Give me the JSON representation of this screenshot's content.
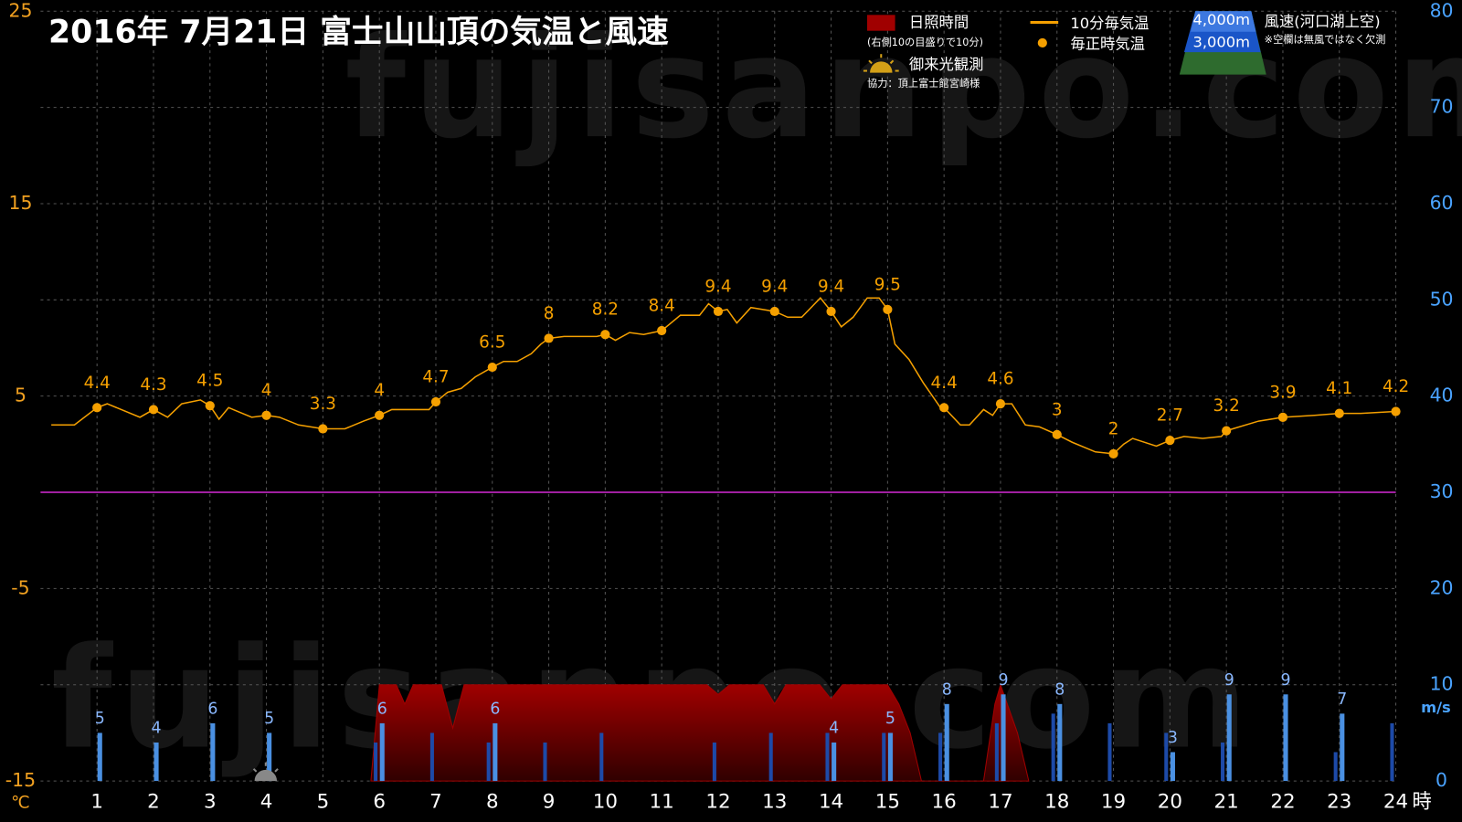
{
  "chart_data": {
    "type": "line",
    "title": "2016年  7月21日   富士山山頂の気温と風速",
    "watermark": "fujisanpo.com",
    "xlim": [
      0,
      24
    ],
    "xticks": [
      1,
      2,
      3,
      4,
      5,
      6,
      7,
      8,
      9,
      10,
      11,
      12,
      13,
      14,
      15,
      16,
      17,
      18,
      19,
      20,
      21,
      22,
      23,
      24
    ],
    "x_unit": "時",
    "ylim": [
      -15,
      25
    ],
    "yticks": [
      -15,
      -5,
      5,
      15,
      25
    ],
    "y_unit": "℃",
    "y2lim": [
      0,
      80
    ],
    "y2ticks": [
      0,
      10,
      20,
      30,
      40,
      50,
      60,
      70,
      80
    ],
    "y2_unit": "m/s",
    "grid": true,
    "sunshine_note": "(右側10の目盛りで10分)",
    "sunrise_label": "御来光観測",
    "credit": "協力：頂上富士館宮崎様",
    "wind_label": "風速(河口湖上空)",
    "wind_note": "※空欄は無風ではなく欠測",
    "series": [
      {
        "name": "10分毎気温",
        "type": "line",
        "color": "#f5a000",
        "x": [
          0.19,
          0.6,
          1,
          1.18,
          1.76,
          2,
          2.25,
          2.5,
          2.83,
          3,
          3.16,
          3.33,
          3.74,
          4,
          4.23,
          4.57,
          5,
          5.39,
          5.72,
          6,
          6.22,
          6.88,
          7,
          7.21,
          7.45,
          7.7,
          8,
          8.2,
          8.44,
          8.69,
          8.86,
          9,
          9.27,
          9.85,
          10,
          10.18,
          10.43,
          10.68,
          11,
          11.33,
          11.67,
          11.83,
          12,
          12.16,
          12.33,
          12.58,
          13,
          13.23,
          13.48,
          13.81,
          14,
          14.18,
          14.39,
          14.64,
          14.85,
          15,
          15.13,
          15.38,
          15.63,
          15.96,
          16,
          16.29,
          16.45,
          16.7,
          16.86,
          17,
          17.2,
          17.44,
          17.69,
          18,
          18.27,
          18.68,
          19,
          19.18,
          19.34,
          19.76,
          20,
          20.25,
          20.58,
          20.91,
          21,
          21.57,
          22,
          22.56,
          23,
          23.38,
          24
        ],
        "values": [
          3.5,
          3.5,
          4.4,
          4.6,
          3.9,
          4.3,
          3.9,
          4.6,
          4.8,
          4.5,
          3.8,
          4.4,
          3.9,
          4,
          3.9,
          3.5,
          3.3,
          3.3,
          3.7,
          4,
          4.3,
          4.3,
          4.7,
          5.2,
          5.4,
          6,
          6.5,
          6.8,
          6.8,
          7.2,
          7.7,
          8,
          8.1,
          8.1,
          8.2,
          7.9,
          8.3,
          8.2,
          8.4,
          9.2,
          9.2,
          9.8,
          9.4,
          9.5,
          8.8,
          9.6,
          9.4,
          9.1,
          9.1,
          10.1,
          9.4,
          8.6,
          9.1,
          10.1,
          10.1,
          9.5,
          7.7,
          6.9,
          5.7,
          4.3,
          4.4,
          3.5,
          3.5,
          4.3,
          4,
          4.6,
          4.6,
          3.5,
          3.4,
          3,
          2.6,
          2.1,
          2,
          2.5,
          2.8,
          2.4,
          2.7,
          2.9,
          2.8,
          2.9,
          3.2,
          3.7,
          3.9,
          4,
          4.1,
          4.1,
          4.2
        ]
      },
      {
        "name": "毎正時気温",
        "type": "scatter",
        "color": "#f5a000",
        "x": [
          1,
          2,
          3,
          4,
          5,
          6,
          7,
          8,
          9,
          10,
          11,
          12,
          13,
          14,
          15,
          16,
          17,
          18,
          19,
          20,
          21,
          22,
          23,
          24
        ],
        "values": [
          4.4,
          4.3,
          4.5,
          4,
          3.3,
          4,
          4.7,
          6.5,
          8,
          8.2,
          8.4,
          9.4,
          9.4,
          9.4,
          9.5,
          4.4,
          4.6,
          3,
          2,
          2.7,
          3.2,
          3.9,
          4.1,
          4.2
        ]
      },
      {
        "name": "日照時間",
        "type": "area",
        "axis": "y2",
        "color": "#a00000",
        "x": [
          5.85,
          6,
          6.3,
          6.45,
          6.6,
          7.1,
          7.3,
          7.5,
          11.8,
          12,
          12.2,
          12.8,
          13,
          13.2,
          13.8,
          14,
          14.2,
          15,
          15.2,
          15.4,
          15.6,
          16.7,
          16.9,
          17,
          17.3,
          17.5
        ],
        "values": [
          0,
          10,
          10,
          8,
          10,
          10,
          5.5,
          10,
          10,
          9,
          10,
          10,
          8,
          10,
          10,
          8.5,
          10,
          10,
          8,
          5,
          0,
          0,
          8,
          10,
          5,
          0
        ]
      },
      {
        "name": "4,000m",
        "type": "bar",
        "axis": "y2",
        "color": "#4a90e2",
        "x": [
          1,
          2,
          3,
          4,
          5,
          6,
          7,
          8,
          9,
          10,
          11,
          12,
          13,
          14,
          15,
          16,
          17,
          18,
          19,
          20,
          21,
          22,
          23,
          24
        ],
        "values": [
          5,
          4,
          6,
          5,
          null,
          6,
          null,
          6,
          null,
          null,
          null,
          null,
          null,
          4,
          5,
          8,
          9,
          8,
          null,
          3,
          9,
          9,
          7,
          null
        ]
      },
      {
        "name": "3,000m",
        "type": "bar",
        "axis": "y2",
        "color": "#1d4aa8",
        "x": [
          1,
          2,
          3,
          4,
          5,
          6,
          7,
          8,
          9,
          10,
          11,
          12,
          13,
          14,
          15,
          16,
          17,
          18,
          19,
          20,
          21,
          22,
          23,
          24
        ],
        "values": [
          null,
          null,
          null,
          null,
          null,
          4,
          5,
          4,
          4,
          5,
          null,
          4,
          5,
          5,
          5,
          5,
          6,
          7,
          6,
          5,
          4,
          null,
          3,
          6
        ]
      }
    ]
  }
}
